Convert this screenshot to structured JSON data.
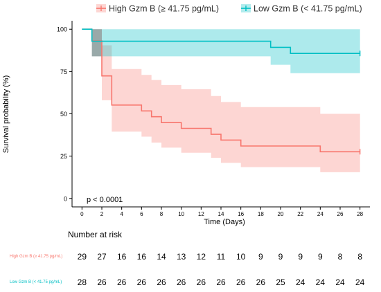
{
  "colors": {
    "high": "#F8766D",
    "high_band": "#F8766D",
    "low": "#00BFC4",
    "low_band": "#00BFC4",
    "overlap": "#8a8a8a"
  },
  "legend": {
    "high": "High Gzm B (≥ 41.75 pg/mL)",
    "low": "Low Gzm B (< 41.75 pg/mL)"
  },
  "annotation": "p < 0.0001",
  "chart_data": {
    "type": "line",
    "subtype": "kaplan-meier",
    "xlabel": "Time (Days)",
    "ylabel": "Survival probability (%)",
    "xlim": [
      -1,
      29
    ],
    "ylim": [
      -5,
      105
    ],
    "xticks": [
      0,
      2,
      4,
      6,
      8,
      10,
      12,
      14,
      16,
      18,
      20,
      22,
      24,
      26,
      28
    ],
    "yticks": [
      0,
      25,
      50,
      75,
      100
    ],
    "grid": false,
    "legend_position": "top",
    "series": [
      {
        "name": "High Gzm B (≥ 41.75 pg/mL)",
        "step_x": [
          0,
          1,
          2,
          3,
          6,
          7,
          8,
          10,
          13,
          14,
          16,
          24,
          28
        ],
        "survival": [
          100,
          93.1,
          72.4,
          55.2,
          51.7,
          48.3,
          44.8,
          41.4,
          37.9,
          34.5,
          31.0,
          27.6,
          27.6
        ],
        "lower": [
          100,
          84,
          58,
          39.5,
          36.5,
          33,
          30,
          27,
          24,
          21,
          18.5,
          15.5,
          15.5
        ],
        "upper": [
          100,
          100,
          90.5,
          76.5,
          73,
          70,
          67,
          64.5,
          60.5,
          57,
          54,
          50,
          50
        ],
        "censored_x": [
          28
        ]
      },
      {
        "name": "Low Gzm B (< 41.75 pg/mL)",
        "step_x": [
          0,
          1,
          19,
          21,
          28
        ],
        "survival": [
          100,
          92.9,
          89.3,
          85.7,
          85.7
        ],
        "lower": [
          100,
          84,
          79,
          74,
          74
        ],
        "upper": [
          100,
          100,
          100,
          100,
          100
        ],
        "censored_x": [
          28
        ]
      }
    ]
  },
  "risk_table": {
    "title": "Number at risk",
    "times": [
      0,
      2,
      4,
      6,
      8,
      10,
      12,
      14,
      16,
      18,
      20,
      22,
      24,
      26,
      28
    ],
    "rows": [
      {
        "label": "High Gzm B (≥ 41.75 pg/mL)",
        "color": "#F8766D",
        "values": [
          29,
          27,
          16,
          16,
          14,
          13,
          12,
          11,
          10,
          9,
          9,
          9,
          9,
          8,
          8
        ]
      },
      {
        "label": "Low Gzm B (< 41.75 pg/mL)",
        "color": "#00BFC4",
        "values": [
          28,
          26,
          26,
          26,
          26,
          26,
          26,
          26,
          26,
          26,
          25,
          24,
          24,
          24,
          24
        ]
      }
    ]
  }
}
